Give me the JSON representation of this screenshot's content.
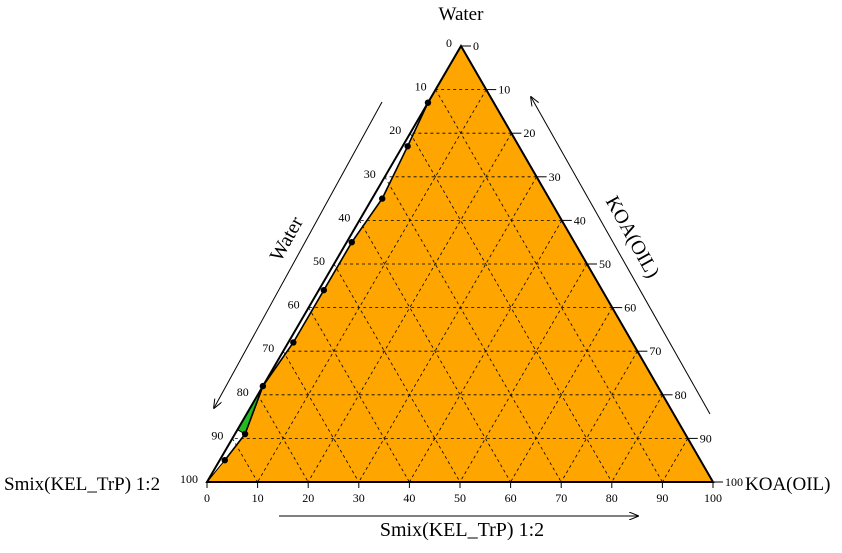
{
  "chart_data": {
    "type": "ternary",
    "corner_labels": {
      "top": "Water",
      "right": "KOA(OIL)",
      "left": "Smix(KEL_TrP) 1:2"
    },
    "axis_titles": {
      "left": "Water",
      "right": "KOA(OIL)",
      "bottom": "Smix(KEL_TrP) 1:2"
    },
    "ticks": [
      0,
      10,
      20,
      30,
      40,
      50,
      60,
      70,
      80,
      90,
      100
    ],
    "grid": "dashed",
    "colors": {
      "region_orange": "#FFA500",
      "region_green": "#22BB22",
      "boundary": "#000000"
    },
    "boundary_points": [
      {
        "water": 100,
        "oil": 0,
        "smix": 0
      },
      {
        "water": 87,
        "oil": 0,
        "smix": 13
      },
      {
        "water": 77,
        "oil": 1,
        "smix": 22
      },
      {
        "water": 65,
        "oil": 2,
        "smix": 33
      },
      {
        "water": 55,
        "oil": 1,
        "smix": 44
      },
      {
        "water": 44,
        "oil": 1,
        "smix": 55
      },
      {
        "water": 32,
        "oil": 1,
        "smix": 67
      },
      {
        "water": 22,
        "oil": 0,
        "smix": 78
      },
      {
        "water": 11,
        "oil": 2,
        "smix": 87
      },
      {
        "water": 5,
        "oil": 1,
        "smix": 94
      }
    ],
    "regions": [
      {
        "color": "#FFA500",
        "points": [
          {
            "water": 100,
            "oil": 0,
            "smix": 0
          },
          {
            "water": 87,
            "oil": 0,
            "smix": 13
          },
          {
            "water": 77,
            "oil": 1,
            "smix": 22
          },
          {
            "water": 65,
            "oil": 2,
            "smix": 33
          },
          {
            "water": 55,
            "oil": 1,
            "smix": 44
          },
          {
            "water": 44,
            "oil": 1,
            "smix": 55
          },
          {
            "water": 32,
            "oil": 1,
            "smix": 67
          },
          {
            "water": 22,
            "oil": 0,
            "smix": 78
          },
          {
            "water": 11,
            "oil": 2,
            "smix": 87
          },
          {
            "water": 5,
            "oil": 1,
            "smix": 94
          },
          {
            "water": 0,
            "oil": 0,
            "smix": 100
          },
          {
            "water": 0,
            "oil": 100,
            "smix": 0
          }
        ]
      },
      {
        "color": "#22BB22",
        "points": [
          {
            "water": 22,
            "oil": 0,
            "smix": 78
          },
          {
            "water": 11,
            "oil": 2,
            "smix": 87
          },
          {
            "water": 12,
            "oil": 0,
            "smix": 88
          }
        ]
      }
    ]
  }
}
